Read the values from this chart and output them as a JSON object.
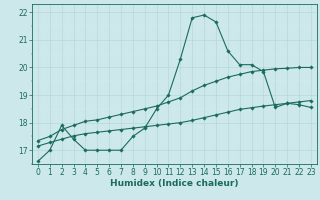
{
  "xlabel": "Humidex (Indice chaleur)",
  "x_values": [
    0,
    1,
    2,
    3,
    4,
    5,
    6,
    7,
    8,
    9,
    10,
    11,
    12,
    13,
    14,
    15,
    16,
    17,
    18,
    19,
    20,
    21,
    22,
    23
  ],
  "line1_y": [
    16.6,
    17.0,
    17.9,
    17.4,
    17.0,
    17.0,
    17.0,
    17.0,
    17.5,
    17.8,
    18.5,
    19.0,
    20.3,
    21.8,
    21.9,
    21.65,
    20.6,
    20.1,
    20.1,
    19.85,
    18.55,
    18.7,
    18.65,
    18.55
  ],
  "line2_y": [
    17.35,
    17.5,
    17.75,
    17.9,
    18.05,
    18.1,
    18.2,
    18.3,
    18.4,
    18.5,
    18.6,
    18.75,
    18.9,
    19.15,
    19.35,
    19.5,
    19.65,
    19.75,
    19.85,
    19.9,
    19.95,
    19.97,
    20.0,
    20.0
  ],
  "line3_y": [
    17.15,
    17.28,
    17.4,
    17.52,
    17.6,
    17.65,
    17.7,
    17.75,
    17.8,
    17.85,
    17.9,
    17.95,
    18.0,
    18.08,
    18.18,
    18.28,
    18.38,
    18.48,
    18.54,
    18.6,
    18.65,
    18.7,
    18.75,
    18.8
  ],
  "line_color": "#1a6b5a",
  "bg_color": "#cde8eb",
  "grid_major_color": "#b8d8dc",
  "grid_minor_color": "#d5edef",
  "ylim": [
    16.5,
    22.3
  ],
  "yticks": [
    17,
    18,
    19,
    20,
    21,
    22
  ],
  "xticks": [
    0,
    1,
    2,
    3,
    4,
    5,
    6,
    7,
    8,
    9,
    10,
    11,
    12,
    13,
    14,
    15,
    16,
    17,
    18,
    19,
    20,
    21,
    22,
    23
  ],
  "tick_fontsize": 5.5,
  "xlabel_fontsize": 6.5,
  "marker": "D",
  "marker_size": 1.8,
  "line_width": 0.8
}
